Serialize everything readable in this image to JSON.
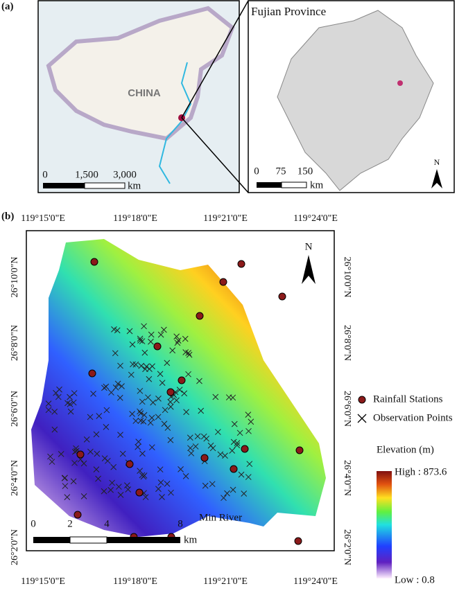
{
  "panel_a": {
    "label": "(a)",
    "china_map": {
      "country_label": "CHINA",
      "scale_ticks": [
        "0",
        "1,500",
        "3,000"
      ],
      "scale_unit": "km"
    },
    "fujian_map": {
      "title": "Fujian Province",
      "north": "N",
      "scale_ticks": [
        "0",
        "75",
        "150"
      ],
      "scale_unit": "km"
    }
  },
  "panel_b": {
    "label": "(b)",
    "lon_labels": [
      "119°15'0\"E",
      "119°18'0\"E",
      "119°21'0\"E",
      "119°24'0\"E"
    ],
    "lat_labels": [
      "26°10'0\"N",
      "26°8'0\"N",
      "26°6'0\"N",
      "26°4'0\"N",
      "26°2'0\"N"
    ],
    "north": "N",
    "scale_ticks": [
      "0",
      "2",
      "4",
      "8"
    ],
    "scale_unit": "km",
    "river_label": "Min River",
    "legend": {
      "rainfall": "Rainfall Stations",
      "observation": "Observation Points",
      "elevation_title": "Elevation (m)",
      "high": "High : 873.6",
      "low": "Low : 0.8"
    }
  }
}
